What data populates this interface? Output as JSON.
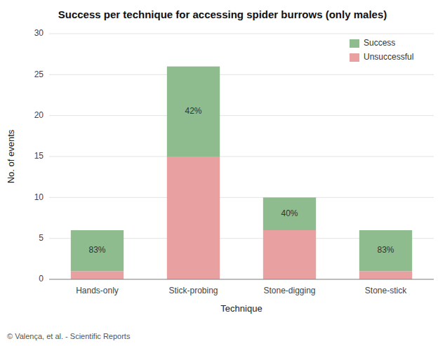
{
  "chart_data": {
    "type": "bar",
    "stacked": true,
    "title": "Success per technique for accessing spider burrows (only males)",
    "x_label": "Technique",
    "y_label": "No. of events",
    "source": "© Valença, et al. - Scientific Reports",
    "categories": [
      "Hands-only",
      "Stick-probing",
      "Stone-digging",
      "Stone-stick"
    ],
    "series": [
      {
        "name": "Unsuccessful",
        "color": "#e8a0a0",
        "values": [
          1,
          15,
          6,
          1
        ]
      },
      {
        "name": "Success",
        "color": "#8fbc8f",
        "values": [
          5,
          11,
          4,
          5
        ],
        "percentages": [
          83,
          42,
          40,
          83
        ],
        "percentage_labels": [
          "83%",
          "42%",
          "40%",
          "83%"
        ]
      }
    ],
    "ylim": [
      0,
      30
    ],
    "yticks": [
      0,
      5,
      10,
      15,
      20,
      25,
      30
    ],
    "grid": true,
    "legend": "upper-right"
  }
}
